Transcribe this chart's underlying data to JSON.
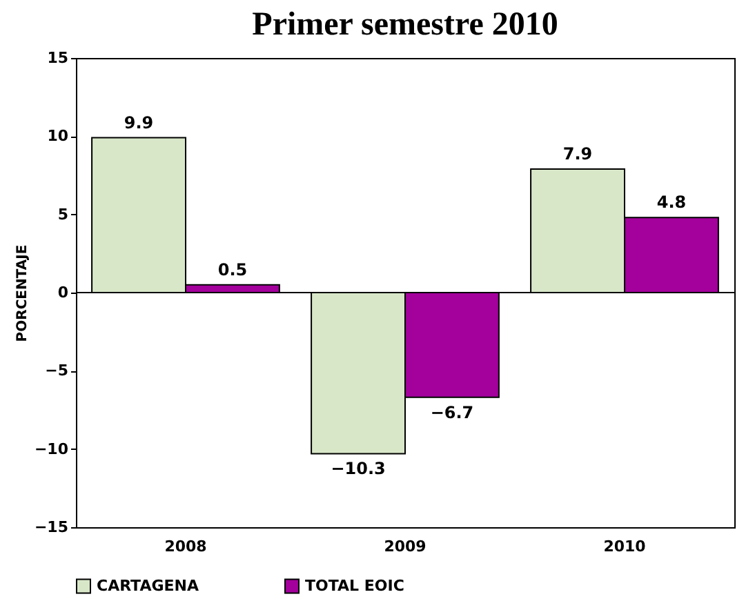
{
  "chart_data": {
    "type": "bar",
    "title": "Primer semestre 2010",
    "ylabel": "PORCENTAJE",
    "categories": [
      "2008",
      "2009",
      "2010"
    ],
    "series": [
      {
        "name": "CARTAGENA",
        "color": "#d8e7c8",
        "values": [
          9.9,
          -10.3,
          7.9
        ]
      },
      {
        "name": "TOTAL EOIC",
        "color": "#a3009c",
        "values": [
          0.5,
          -6.7,
          4.8
        ]
      }
    ],
    "ylim": [
      -15,
      15
    ],
    "yticks": [
      -15,
      -10,
      -5,
      0,
      5,
      10,
      15
    ],
    "data_labels": true,
    "legend": "bottom"
  }
}
